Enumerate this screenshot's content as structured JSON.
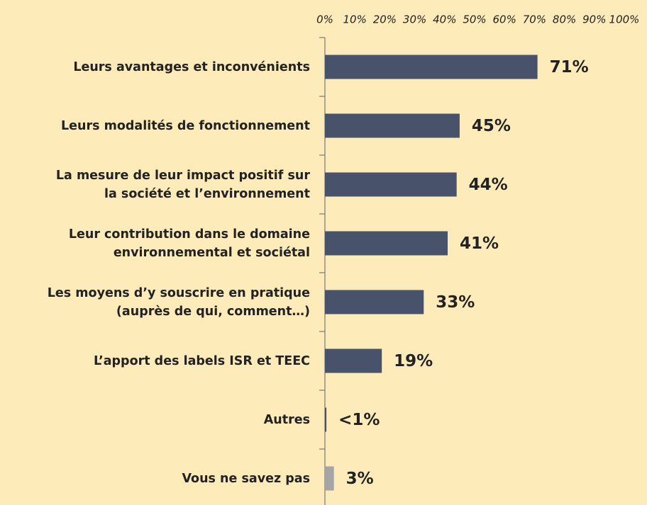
{
  "chart_data": {
    "type": "barh",
    "categories": [
      "Leurs avantages et inconvénients",
      "Leurs modalités de fonctionnement",
      "La mesure de leur impact positif sur\nla société et l’environnement",
      "Leur contribution dans le domaine\nenvironnemental et sociétal",
      "Les moyens d’y souscrire en pratique\n(auprès de qui, comment…)",
      "L’apport des labels ISR et TEEC",
      "Autres",
      "Vous ne savez pas"
    ],
    "values": [
      71,
      45,
      44,
      41,
      33,
      19,
      0.5,
      3
    ],
    "value_labels": [
      "71%",
      "45%",
      "44%",
      "41%",
      "33%",
      "19%",
      "<1%",
      "3%"
    ],
    "colors": [
      "#48536b",
      "#48536b",
      "#48536b",
      "#48536b",
      "#48536b",
      "#48536b",
      "#48536b",
      "#a5a5a5"
    ],
    "xlim": [
      0,
      100
    ],
    "xticks": [
      {
        "value": 0,
        "label": "0%"
      },
      {
        "value": 10,
        "label": "10%"
      },
      {
        "value": 20,
        "label": "20%"
      },
      {
        "value": 30,
        "label": "30%"
      },
      {
        "value": 40,
        "label": "40%"
      },
      {
        "value": 50,
        "label": "50%"
      },
      {
        "value": 60,
        "label": "60%"
      },
      {
        "value": 70,
        "label": "70%"
      },
      {
        "value": 80,
        "label": "80%"
      },
      {
        "value": 90,
        "label": "90%"
      },
      {
        "value": 100,
        "label": "100%"
      }
    ],
    "grid": false
  }
}
